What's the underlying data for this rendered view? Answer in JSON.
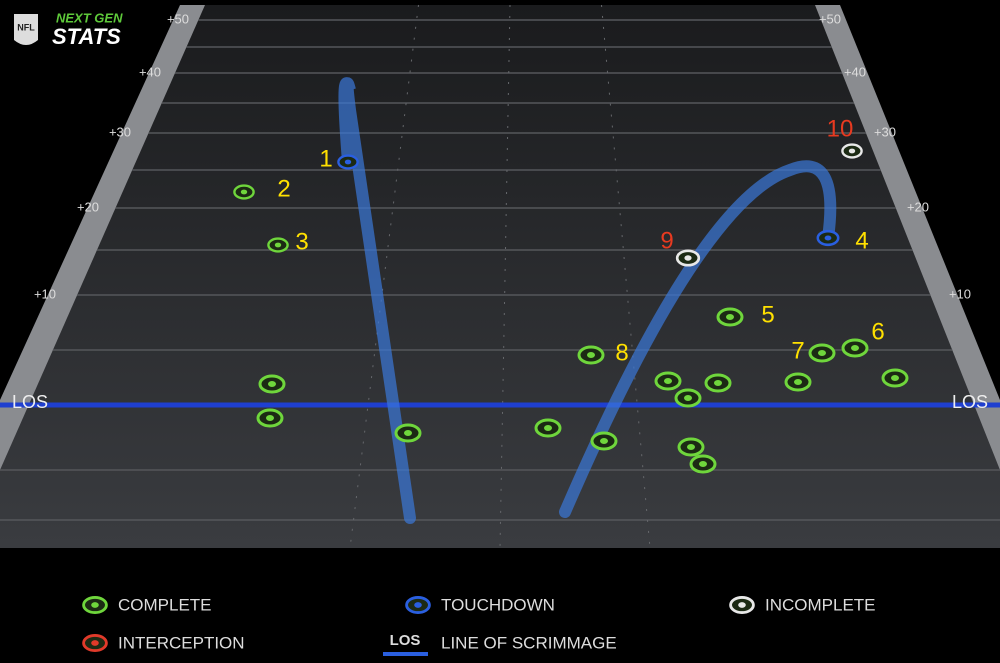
{
  "logo": {
    "badge": "NFL",
    "line1": "NEXT GEN",
    "line2": "STATS"
  },
  "field": {
    "yard_labels": [
      "+50",
      "+40",
      "+30",
      "+20",
      "+10"
    ],
    "los": "LOS"
  },
  "pass_labels": [
    "1",
    "2",
    "3",
    "4",
    "5",
    "6",
    "7",
    "8",
    "9",
    "10"
  ],
  "legend": {
    "complete": "COMPLETE",
    "touchdown": "TOUCHDOWN",
    "incomplete": "INCOMPLETE",
    "interception": "INTERCEPTION",
    "los_badge": "LOS",
    "los_text": "LINE OF SCRIMMAGE"
  }
}
